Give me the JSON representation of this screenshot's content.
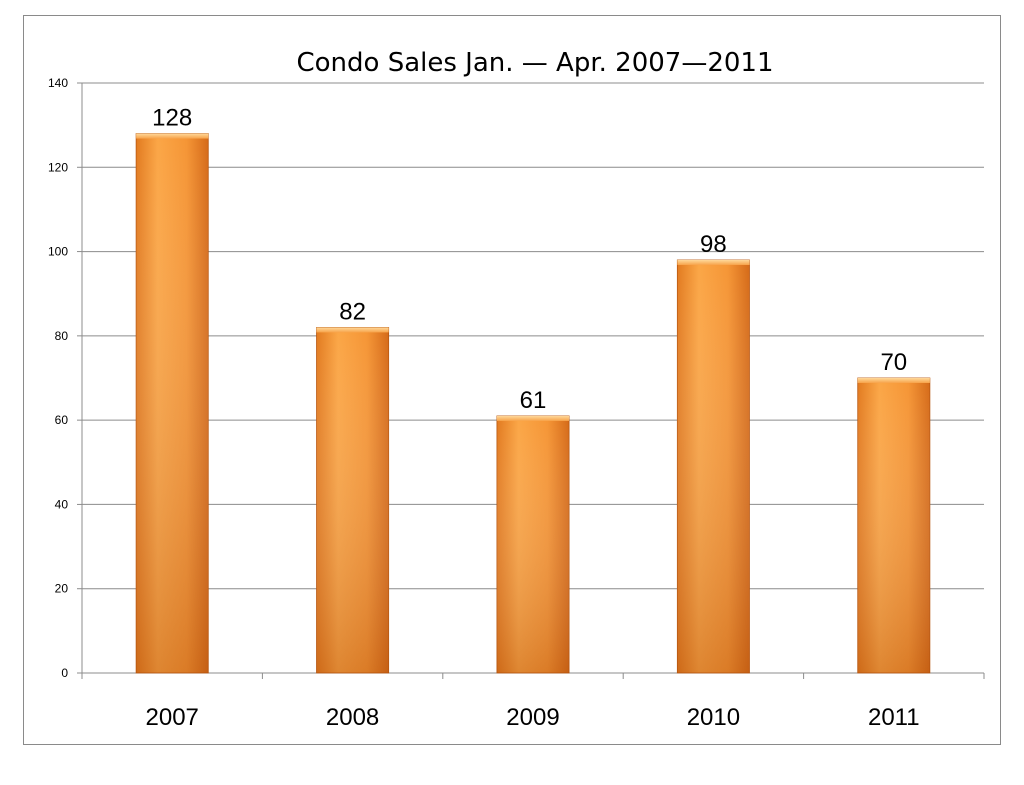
{
  "chart_data": {
    "type": "bar",
    "title": "Condo Sales Jan. — Apr. 2007—2011",
    "xlabel": "",
    "ylabel": "",
    "categories": [
      "2007",
      "2008",
      "2009",
      "2010",
      "2011"
    ],
    "values": [
      128,
      82,
      61,
      98,
      70
    ],
    "data_labels": [
      "128",
      "82",
      "61",
      "98",
      "70"
    ],
    "ylim": [
      0,
      140
    ],
    "yticks": [
      0,
      20,
      40,
      60,
      80,
      100,
      120,
      140
    ],
    "ytick_labels": [
      "0",
      "20",
      "40",
      "60",
      "80",
      "100",
      "120",
      "140"
    ],
    "grid": true,
    "legend": "none",
    "bar_color": "#f0871e",
    "bar_color_light": "#fba646",
    "bar_color_dark": "#d9661a"
  }
}
